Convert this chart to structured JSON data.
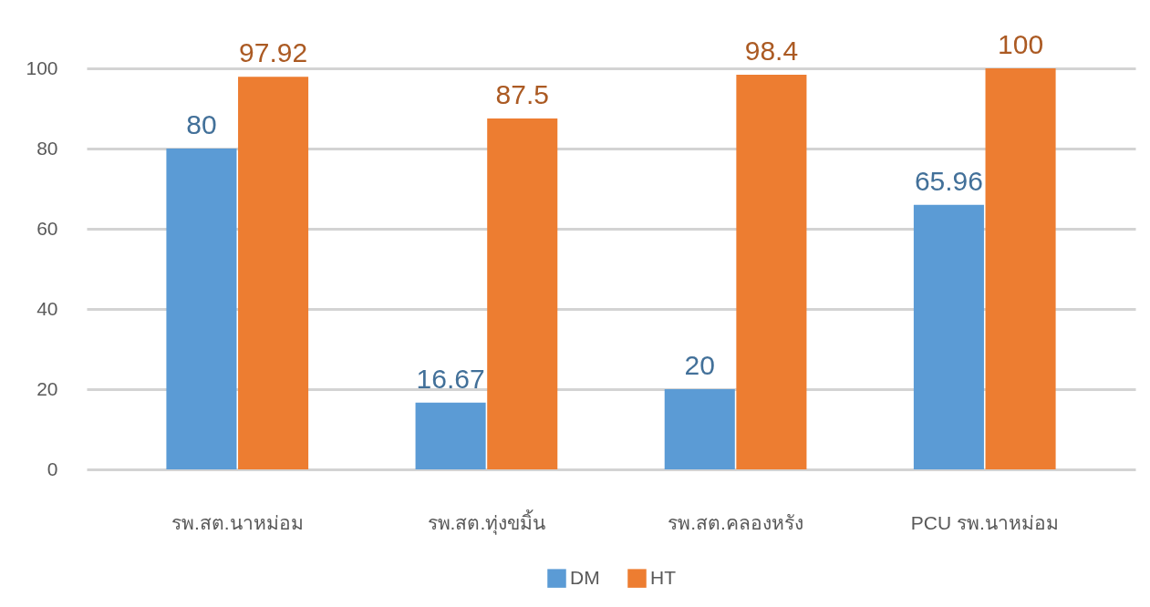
{
  "chart_data": {
    "type": "bar",
    "categories": [
      "รพ.สต.นาหม่อม",
      "รพ.สต.ทุ่งขมิ้น",
      "รพ.สต.คลองหรัง",
      "PCU รพ.นาหม่อม"
    ],
    "series": [
      {
        "name": "DM",
        "color": "#5b9bd5",
        "values": [
          80,
          16.67,
          20,
          65.96
        ]
      },
      {
        "name": "HT",
        "color": "#ed7d31",
        "values": [
          97.92,
          87.5,
          98.4,
          100
        ]
      }
    ],
    "ylim": [
      0,
      100
    ],
    "yticks": [
      0,
      20,
      40,
      60,
      80,
      100
    ],
    "grid": "y",
    "legend": "bottom",
    "data_labels": true
  }
}
